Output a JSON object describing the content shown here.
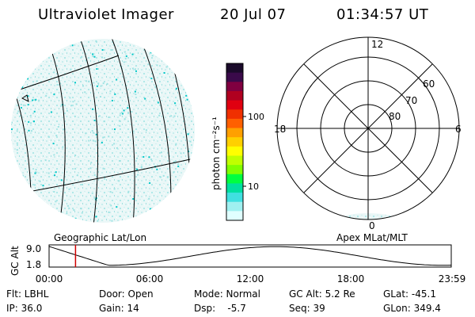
{
  "header": {
    "title": "Ultraviolet Imager",
    "date": "20 Jul 07",
    "time": "01:34:57 UT"
  },
  "colorbar": {
    "unit_label": "photon cm⁻²s⁻¹",
    "ticks": [
      "100",
      "10"
    ],
    "colors": [
      "#1a0a2a",
      "#3a0a4a",
      "#800040",
      "#b00020",
      "#e00010",
      "#f03000",
      "#ff6000",
      "#ffa000",
      "#ffd000",
      "#ffff00",
      "#c0ff00",
      "#80ff00",
      "#00ff40",
      "#00e0a0",
      "#40e0e0",
      "#a0f0f0",
      "#e0ffff"
    ]
  },
  "left_panel": {
    "caption": "Geographic Lat/Lon",
    "accent_color": "#00c8c8"
  },
  "right_panel": {
    "caption": "Apex MLat/MLT",
    "mlt_labels": [
      "12",
      "18",
      "6",
      "0"
    ],
    "lat_labels": [
      "60",
      "70",
      "80"
    ]
  },
  "altitude_plot": {
    "ylabel": "GC Alt",
    "ytick_top": "9.0",
    "ytick_bottom": "1.8",
    "xticks": [
      "00:00",
      "06:00",
      "12:00",
      "18:00",
      "23:59"
    ],
    "cursor_color": "#d00000",
    "cursor_time_hours": 1.58
  },
  "info": {
    "flt": "Flt: LBHL",
    "door": "Door: Open",
    "mode": "Mode: Normal",
    "gc_alt": "GC Alt: 5.2 Re",
    "glat": "GLat: -45.1",
    "ip": "IP: 36.0",
    "gain": "Gain: 14",
    "dsp": "Dsp:    -5.7",
    "seq": "Seq: 39",
    "glon": "GLon: 349.4"
  }
}
